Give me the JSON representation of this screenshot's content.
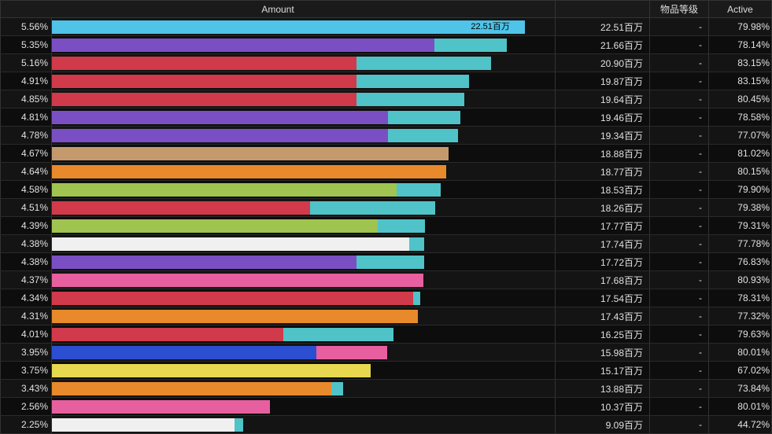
{
  "headers": {
    "amount": "Amount",
    "grade": "物品等级",
    "active": "Active"
  },
  "max_value": 22.51,
  "bar_full_width_pct": 94,
  "label_suffix": "百万",
  "value_font_color": "#000000",
  "rows": [
    {
      "pct": "5.56%",
      "total": 22.51,
      "amount": "22.51百万",
      "grade": "-",
      "active": "79.98%",
      "segs": [
        {
          "c": "#4fc3e8",
          "v": 22.51
        }
      ]
    },
    {
      "pct": "5.35%",
      "total": 21.66,
      "amount": "21.66百万",
      "grade": "-",
      "active": "78.14%",
      "segs": [
        {
          "c": "#7b4fc4",
          "v": 18.2
        },
        {
          "c": "#4fc3c8",
          "v": 3.46
        }
      ]
    },
    {
      "pct": "5.16%",
      "total": 20.9,
      "amount": "20.90百万",
      "grade": "-",
      "active": "83.15%",
      "segs": [
        {
          "c": "#d03a4a",
          "v": 14.5
        },
        {
          "c": "#4fc3c8",
          "v": 6.4
        }
      ]
    },
    {
      "pct": "4.91%",
      "total": 19.87,
      "amount": "19.87百万",
      "grade": "-",
      "active": "83.15%",
      "segs": [
        {
          "c": "#d03a4a",
          "v": 14.5
        },
        {
          "c": "#4fc3c8",
          "v": 5.37
        }
      ]
    },
    {
      "pct": "4.85%",
      "total": 19.64,
      "amount": "19.64百万",
      "grade": "-",
      "active": "80.45%",
      "segs": [
        {
          "c": "#d03a4a",
          "v": 14.5
        },
        {
          "c": "#4fc3c8",
          "v": 5.14
        }
      ]
    },
    {
      "pct": "4.81%",
      "total": 19.46,
      "amount": "19.46百万",
      "grade": "-",
      "active": "78.58%",
      "segs": [
        {
          "c": "#7b4fc4",
          "v": 16.0
        },
        {
          "c": "#4fc3c8",
          "v": 3.46
        }
      ]
    },
    {
      "pct": "4.78%",
      "total": 19.34,
      "amount": "19.34百万",
      "grade": "-",
      "active": "77.07%",
      "segs": [
        {
          "c": "#7b4fc4",
          "v": 16.0
        },
        {
          "c": "#4fc3c8",
          "v": 3.34
        }
      ]
    },
    {
      "pct": "4.67%",
      "total": 18.88,
      "amount": "18.88百万",
      "grade": "-",
      "active": "81.02%",
      "segs": [
        {
          "c": "#c49a6c",
          "v": 18.88
        }
      ]
    },
    {
      "pct": "4.64%",
      "total": 18.77,
      "amount": "18.77百万",
      "grade": "-",
      "active": "80.15%",
      "segs": [
        {
          "c": "#e8892b",
          "v": 18.77
        }
      ]
    },
    {
      "pct": "4.58%",
      "total": 18.53,
      "amount": "18.53百万",
      "grade": "-",
      "active": "79.90%",
      "segs": [
        {
          "c": "#9fc44f",
          "v": 16.4
        },
        {
          "c": "#4fc3c8",
          "v": 2.13
        }
      ]
    },
    {
      "pct": "4.51%",
      "total": 18.26,
      "amount": "18.26百万",
      "grade": "-",
      "active": "79.38%",
      "segs": [
        {
          "c": "#d03a4a",
          "v": 12.3
        },
        {
          "c": "#4fc3c8",
          "v": 5.96
        }
      ]
    },
    {
      "pct": "4.39%",
      "total": 17.77,
      "amount": "17.77百万",
      "grade": "-",
      "active": "79.31%",
      "segs": [
        {
          "c": "#9fc44f",
          "v": 15.5
        },
        {
          "c": "#4fc3c8",
          "v": 2.27
        }
      ]
    },
    {
      "pct": "4.38%",
      "total": 17.74,
      "amount": "17.74百万",
      "grade": "-",
      "active": "77.78%",
      "segs": [
        {
          "c": "#f0f0f0",
          "v": 17.0
        },
        {
          "c": "#4fc3c8",
          "v": 0.74
        }
      ]
    },
    {
      "pct": "4.38%",
      "total": 17.72,
      "amount": "17.72百万",
      "grade": "-",
      "active": "76.83%",
      "segs": [
        {
          "c": "#7b4fc4",
          "v": 14.5
        },
        {
          "c": "#4fc3c8",
          "v": 3.22
        }
      ]
    },
    {
      "pct": "4.37%",
      "total": 17.68,
      "amount": "17.68百万",
      "grade": "-",
      "active": "80.93%",
      "segs": [
        {
          "c": "#e85fa0",
          "v": 17.68
        }
      ]
    },
    {
      "pct": "4.34%",
      "total": 17.54,
      "amount": "17.54百万",
      "grade": "-",
      "active": "78.31%",
      "segs": [
        {
          "c": "#d03a4a",
          "v": 17.2
        },
        {
          "c": "#4fc3c8",
          "v": 0.34
        }
      ]
    },
    {
      "pct": "4.31%",
      "total": 17.43,
      "amount": "17.43百万",
      "grade": "-",
      "active": "77.32%",
      "segs": [
        {
          "c": "#e8892b",
          "v": 17.43
        }
      ]
    },
    {
      "pct": "4.01%",
      "total": 16.25,
      "amount": "16.25百万",
      "grade": "-",
      "active": "79.63%",
      "segs": [
        {
          "c": "#d03a4a",
          "v": 11.0
        },
        {
          "c": "#4fc3c8",
          "v": 5.25
        }
      ]
    },
    {
      "pct": "3.95%",
      "total": 15.98,
      "amount": "15.98百万",
      "grade": "-",
      "active": "80.01%",
      "segs": [
        {
          "c": "#2b4fd0",
          "v": 12.6
        },
        {
          "c": "#e85fa0",
          "v": 3.38
        }
      ]
    },
    {
      "pct": "3.75%",
      "total": 15.17,
      "amount": "15.17百万",
      "grade": "-",
      "active": "67.02%",
      "segs": [
        {
          "c": "#e8d84f",
          "v": 15.17
        }
      ]
    },
    {
      "pct": "3.43%",
      "total": 13.88,
      "amount": "13.88百万",
      "grade": "-",
      "active": "73.84%",
      "segs": [
        {
          "c": "#e8892b",
          "v": 13.3
        },
        {
          "c": "#4fc3c8",
          "v": 0.58
        }
      ]
    },
    {
      "pct": "2.56%",
      "total": 10.37,
      "amount": "10.37百万",
      "grade": "-",
      "active": "80.01%",
      "segs": [
        {
          "c": "#e85fa0",
          "v": 10.37
        }
      ]
    },
    {
      "pct": "2.25%",
      "total": 9.09,
      "amount": "9.09百万",
      "grade": "-",
      "active": "44.72%",
      "segs": [
        {
          "c": "#f0f0f0",
          "v": 8.7
        },
        {
          "c": "#4fc3c8",
          "v": 0.39
        }
      ]
    }
  ]
}
